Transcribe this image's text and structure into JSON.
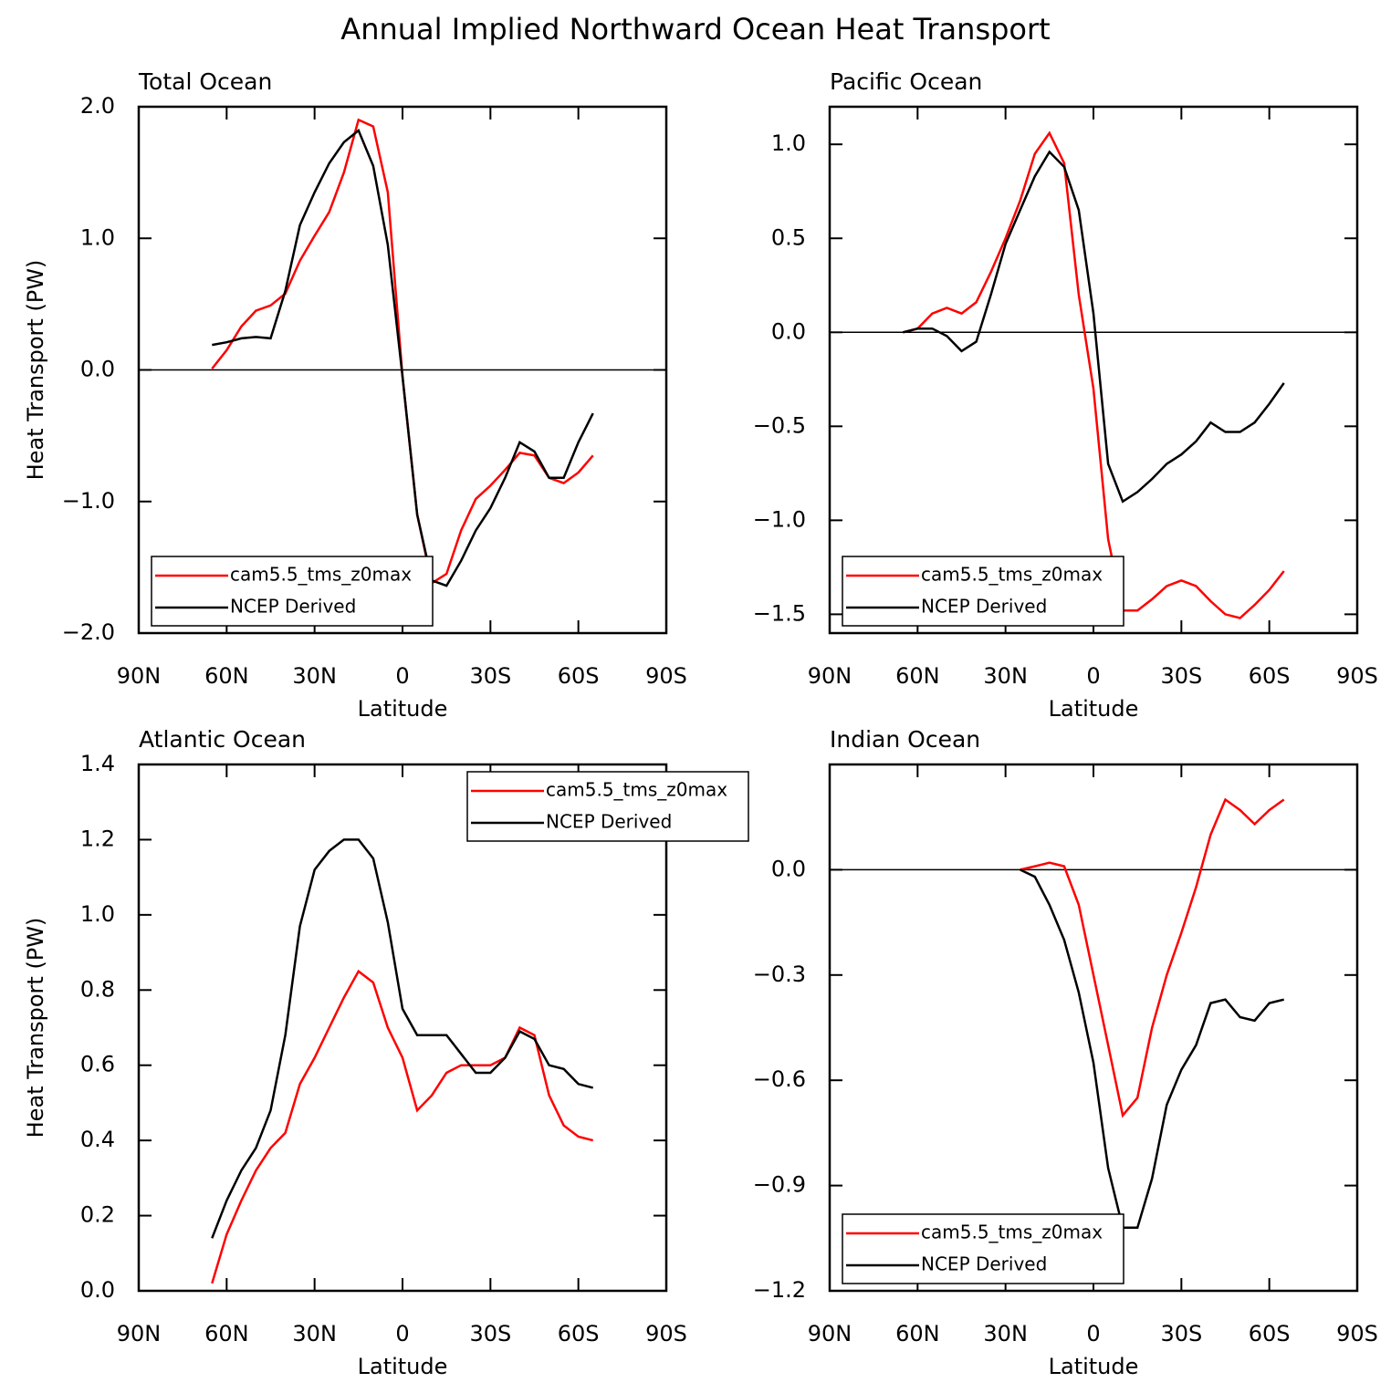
{
  "title": "Annual Implied Northward Ocean Heat Transport",
  "chart_data": [
    {
      "type": "line",
      "title": "Total Ocean",
      "xlabel": "Latitude",
      "ylabel": "Heat Transport (PW)",
      "xlim": [
        90,
        -90
      ],
      "xticks": [
        {
          "value": 90,
          "label": "90N"
        },
        {
          "value": 60,
          "label": "60N"
        },
        {
          "value": 30,
          "label": "30N"
        },
        0,
        {
          "value": -30,
          "label": "30S"
        },
        {
          "value": -60,
          "label": "60S"
        },
        {
          "value": -90,
          "label": "90S"
        }
      ],
      "ylim": [
        -2,
        2
      ],
      "yticks": [
        {
          "value": 2,
          "label": "2.0"
        },
        {
          "value": 1,
          "label": "1.0"
        },
        {
          "value": 0,
          "label": "0.0"
        },
        {
          "value": -1,
          "label": "−1.0"
        },
        {
          "value": -2,
          "label": "−2.0"
        }
      ],
      "zero_line": true,
      "legend": "lower left",
      "x": [
        65,
        60,
        55,
        50,
        45,
        40,
        35,
        30,
        25,
        20,
        15,
        10,
        5,
        0,
        -5,
        -10,
        -15,
        -20,
        -25,
        -30,
        -35,
        -40,
        -45,
        -50,
        -55,
        -60,
        -65
      ],
      "series": [
        {
          "name": "cam5.5_tms_z0max",
          "color": "#ff0000",
          "values": [
            0.01,
            0.15,
            0.33,
            0.45,
            0.49,
            0.58,
            0.83,
            1.02,
            1.2,
            1.5,
            1.9,
            1.85,
            1.35,
            -0.05,
            -1.1,
            -1.62,
            -1.55,
            -1.22,
            -0.98,
            -0.88,
            -0.76,
            -0.63,
            -0.65,
            -0.82,
            -0.86,
            -0.78,
            -0.65
          ]
        },
        {
          "name": "NCEP Derived",
          "color": "#000000",
          "values": [
            0.19,
            0.21,
            0.24,
            0.25,
            0.24,
            0.6,
            1.1,
            1.35,
            1.57,
            1.73,
            1.82,
            1.55,
            0.95,
            -0.05,
            -1.1,
            -1.6,
            -1.64,
            -1.45,
            -1.22,
            -1.05,
            -0.82,
            -0.55,
            -0.62,
            -0.82,
            -0.82,
            -0.55,
            -0.33
          ]
        }
      ]
    },
    {
      "type": "line",
      "title": "Pacific Ocean",
      "xlabel": "Latitude",
      "xlim": [
        90,
        -90
      ],
      "xticks": [
        {
          "value": 90,
          "label": "90N"
        },
        {
          "value": 60,
          "label": "60N"
        },
        {
          "value": 30,
          "label": "30N"
        },
        0,
        {
          "value": -30,
          "label": "30S"
        },
        {
          "value": -60,
          "label": "60S"
        },
        {
          "value": -90,
          "label": "90S"
        }
      ],
      "ylim": [
        -1.6,
        1.2
      ],
      "yticks": [
        {
          "value": 1,
          "label": "1.0"
        },
        0.5,
        {
          "value": 0,
          "label": "0.0"
        },
        {
          "value": -0.5,
          "label": "−0.5"
        },
        {
          "value": -1,
          "label": "−1.0"
        },
        {
          "value": -1.5,
          "label": "−1.5"
        }
      ],
      "zero_line": true,
      "legend": "lower left",
      "x": [
        65,
        60,
        55,
        50,
        45,
        40,
        35,
        30,
        25,
        20,
        15,
        10,
        5,
        0,
        -5,
        -10,
        -15,
        -20,
        -25,
        -30,
        -35,
        -40,
        -45,
        -50,
        -55,
        -60,
        -65
      ],
      "series": [
        {
          "name": "cam5.5_tms_z0max",
          "color": "#ff0000",
          "values": [
            0,
            0.02,
            0.1,
            0.13,
            0.1,
            0.16,
            0.32,
            0.5,
            0.7,
            0.95,
            1.06,
            0.9,
            0.2,
            -0.3,
            -1.1,
            -1.48,
            -1.48,
            -1.42,
            -1.35,
            -1.32,
            -1.35,
            -1.43,
            -1.5,
            -1.52,
            -1.45,
            -1.37,
            -1.27
          ]
        },
        {
          "name": "NCEP Derived",
          "color": "#000000",
          "values": [
            0,
            0.02,
            0.02,
            -0.02,
            -0.1,
            -0.05,
            0.2,
            0.47,
            0.65,
            0.83,
            0.96,
            0.88,
            0.65,
            0.1,
            -0.7,
            -0.9,
            -0.85,
            -0.78,
            -0.7,
            -0.65,
            -0.58,
            -0.48,
            -0.53,
            -0.53,
            -0.48,
            -0.38,
            -0.27
          ]
        }
      ]
    },
    {
      "type": "line",
      "title": "Atlantic Ocean",
      "xlabel": "Latitude",
      "ylabel": "Heat Transport (PW)",
      "xlim": [
        90,
        -90
      ],
      "xticks": [
        {
          "value": 90,
          "label": "90N"
        },
        {
          "value": 60,
          "label": "60N"
        },
        {
          "value": 30,
          "label": "30N"
        },
        0,
        {
          "value": -30,
          "label": "30S"
        },
        {
          "value": -60,
          "label": "60S"
        },
        {
          "value": -90,
          "label": "90S"
        }
      ],
      "ylim": [
        0,
        1.4
      ],
      "yticks": [
        {
          "value": 0,
          "label": "0.0"
        },
        0.2,
        0.4,
        0.6,
        0.8,
        {
          "value": 1,
          "label": "1.0"
        },
        1.2,
        1.4
      ],
      "zero_line": false,
      "legend": "upper right",
      "x": [
        65,
        60,
        55,
        50,
        45,
        40,
        35,
        30,
        25,
        20,
        15,
        10,
        5,
        0,
        -5,
        -10,
        -15,
        -20,
        -25,
        -30,
        -35,
        -40,
        -45,
        -50,
        -55,
        -60,
        -65
      ],
      "series": [
        {
          "name": "cam5.5_tms_z0max",
          "color": "#ff0000",
          "values": [
            0.02,
            0.15,
            0.24,
            0.32,
            0.38,
            0.42,
            0.55,
            0.62,
            0.7,
            0.78,
            0.85,
            0.82,
            0.7,
            0.62,
            0.48,
            0.52,
            0.58,
            0.6,
            0.6,
            0.6,
            0.62,
            0.7,
            0.68,
            0.52,
            0.44,
            0.41,
            0.4
          ]
        },
        {
          "name": "NCEP Derived",
          "color": "#000000",
          "values": [
            0.14,
            0.24,
            0.32,
            0.38,
            0.48,
            0.68,
            0.97,
            1.12,
            1.17,
            1.2,
            1.2,
            1.15,
            0.98,
            0.75,
            0.68,
            0.68,
            0.68,
            0.63,
            0.58,
            0.58,
            0.62,
            0.69,
            0.67,
            0.6,
            0.59,
            0.55,
            0.54
          ]
        }
      ]
    },
    {
      "type": "line",
      "title": "Indian Ocean",
      "xlabel": "Latitude",
      "xlim": [
        90,
        -90
      ],
      "xticks": [
        {
          "value": 90,
          "label": "90N"
        },
        {
          "value": 60,
          "label": "60N"
        },
        {
          "value": 30,
          "label": "30N"
        },
        0,
        {
          "value": -30,
          "label": "30S"
        },
        {
          "value": -60,
          "label": "60S"
        },
        {
          "value": -90,
          "label": "90S"
        }
      ],
      "ylim": [
        -1.2,
        0.3
      ],
      "yticks": [
        {
          "value": 0,
          "label": "0.0"
        },
        {
          "value": -0.3,
          "label": "−0.3"
        },
        {
          "value": -0.6,
          "label": "−0.6"
        },
        {
          "value": -0.9,
          "label": "−0.9"
        },
        {
          "value": -1.2,
          "label": "−1.2"
        }
      ],
      "zero_line": true,
      "legend": "lower left",
      "x": [
        25,
        20,
        15,
        10,
        5,
        0,
        -5,
        -10,
        -15,
        -20,
        -25,
        -30,
        -35,
        -40,
        -45,
        -50,
        -55,
        -60,
        -65
      ],
      "series": [
        {
          "name": "cam5.5_tms_z0max",
          "color": "#ff0000",
          "values": [
            0,
            0.01,
            0.02,
            0.01,
            -0.1,
            -0.3,
            -0.5,
            -0.7,
            -0.65,
            -0.45,
            -0.3,
            -0.18,
            -0.05,
            0.1,
            0.2,
            0.17,
            0.13,
            0.17,
            0.2
          ]
        },
        {
          "name": "NCEP Derived",
          "color": "#000000",
          "values": [
            0,
            -0.02,
            -0.1,
            -0.2,
            -0.35,
            -0.55,
            -0.85,
            -1.02,
            -1.02,
            -0.88,
            -0.67,
            -0.57,
            -0.5,
            -0.38,
            -0.37,
            -0.42,
            -0.43,
            -0.38,
            -0.37
          ]
        }
      ]
    }
  ]
}
